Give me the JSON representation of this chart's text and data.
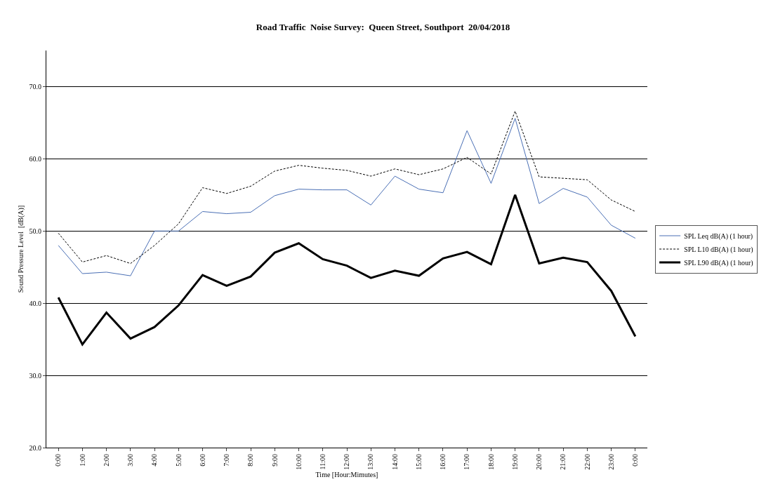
{
  "chart_data": {
    "type": "line",
    "title": "Road Traffic  Noise Survey:  Queen Street, Southport  20/04/2018",
    "xlabel": "Time [Hour:Mimutes]",
    "ylabel": "Sound Pressure Level  [dB(A)]",
    "categories": [
      "0:00",
      "1:00",
      "2:00",
      "3:00",
      "4:00",
      "5:00",
      "6:00",
      "7:00",
      "8:00",
      "9:00",
      "10:00",
      "11:00",
      "12:00",
      "13:00",
      "14:00",
      "15:00",
      "16:00",
      "17:00",
      "18:00",
      "19:00",
      "20:00",
      "21:00",
      "22:00",
      "23:00",
      "0:00"
    ],
    "series": [
      {
        "name": "SPL Leq dB(A) (1 hour)",
        "color": "#4a6fb5",
        "line_style": "solid",
        "values": [
          48.0,
          44.1,
          44.3,
          43.8,
          50.0,
          50.0,
          52.7,
          52.4,
          52.6,
          54.9,
          55.8,
          55.7,
          55.7,
          53.6,
          57.6,
          55.8,
          55.3,
          63.9,
          56.6,
          65.6,
          53.8,
          55.9,
          54.7,
          50.8,
          49.0
        ]
      },
      {
        "name": "SPL L10 dB(A) (1 hour)",
        "color": "#000000",
        "line_style": "dashed",
        "values": [
          49.7,
          45.7,
          46.6,
          45.5,
          48.0,
          51.0,
          56.0,
          55.2,
          56.2,
          58.3,
          59.1,
          58.7,
          58.4,
          57.6,
          58.6,
          57.8,
          58.6,
          60.2,
          57.9,
          66.6,
          57.5,
          57.3,
          57.1,
          54.3,
          52.7
        ]
      },
      {
        "name": "SPL L90 dB(A) (1 hour)",
        "color": "#000000",
        "line_style": "solid",
        "values": [
          40.8,
          34.3,
          38.7,
          35.1,
          36.7,
          39.7,
          43.9,
          42.4,
          43.7,
          47.0,
          48.3,
          46.1,
          45.2,
          43.5,
          44.5,
          43.8,
          46.2,
          47.1,
          45.4,
          55.0,
          45.5,
          46.3,
          45.7,
          41.7,
          35.4
        ]
      }
    ],
    "ylim": [
      20,
      75
    ],
    "yticks": [
      {
        "value": 20,
        "label": "20.0"
      },
      {
        "value": 30,
        "label": "30.0"
      },
      {
        "value": 40,
        "label": "40.0"
      },
      {
        "value": 50,
        "label": "50.0"
      },
      {
        "value": 60,
        "label": "60.0"
      },
      {
        "value": 70,
        "label": "70.0"
      }
    ],
    "grid": "y",
    "legend": "right",
    "marker": "none"
  }
}
